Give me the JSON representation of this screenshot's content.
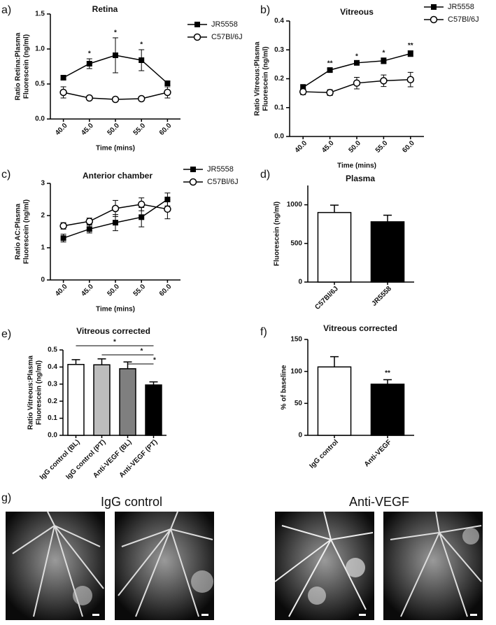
{
  "chart_data": [
    {
      "type": "line",
      "label": "a)",
      "title": "Retina",
      "y_label": [
        "Ratio Retina:Plasma",
        "Fluorescein (ng/ml)"
      ],
      "x_label": "Time (mins)",
      "categories": [
        "40.0",
        "45.0",
        "50.0",
        "55.0",
        "60.0"
      ],
      "ylim": [
        0,
        1.5
      ],
      "yticks": [
        {
          "value": 0,
          "label": "0.0"
        },
        {
          "value": 0.5,
          "label": "0.5"
        },
        {
          "value": 1,
          "label": "1.0"
        },
        {
          "value": 1.5,
          "label": "1.5"
        }
      ],
      "legend": "upper right",
      "series": [
        {
          "name": "JR5558",
          "color": "#000000",
          "marker": "square",
          "values": [
            0.59,
            0.79,
            0.91,
            0.84,
            0.51
          ],
          "errors": [
            0.03,
            0.07,
            0.25,
            0.15,
            0.03
          ]
        },
        {
          "name": "C57Bl/6J",
          "color": "#000000",
          "marker": "circle",
          "values": [
            0.38,
            0.3,
            0.28,
            0.29,
            0.38
          ],
          "errors": [
            0.08,
            0.02,
            0.02,
            0.03,
            0.08
          ]
        }
      ],
      "significance": [
        null,
        "*",
        "*",
        "*",
        null
      ]
    },
    {
      "type": "line",
      "label": "b)",
      "title": "Vitreous",
      "y_label": [
        "Ratio Vitreous:Plasma",
        "Fluorescein (ng/ml)"
      ],
      "x_label": "Time (mins)",
      "categories": [
        "40.0",
        "45.0",
        "50.0",
        "55.0",
        "60.0"
      ],
      "ylim": [
        0,
        0.4
      ],
      "yticks": [
        {
          "value": 0,
          "label": "0.0"
        },
        0.1,
        0.2,
        0.3,
        0.4
      ],
      "legend": "upper right",
      "series": [
        {
          "name": "JR5558",
          "color": "#000000",
          "marker": "square",
          "values": [
            0.17,
            0.23,
            0.255,
            0.262,
            0.287
          ],
          "errors": [
            0.01,
            0.005,
            0.005,
            0.01,
            0.01
          ]
        },
        {
          "name": "C57Bl/6J",
          "color": "#000000",
          "marker": "circle",
          "values": [
            0.155,
            0.152,
            0.185,
            0.193,
            0.197
          ],
          "errors": [
            0.01,
            0.01,
            0.02,
            0.02,
            0.025
          ]
        }
      ],
      "significance": [
        null,
        "**",
        "*",
        "*",
        "**"
      ]
    },
    {
      "type": "line",
      "label": "c)",
      "title": "Anterior chamber",
      "y_label": [
        "Ratio AC:Plasma",
        "Fluorescein (ng/ml)"
      ],
      "x_label": "Time (mins)",
      "categories": [
        "40.0",
        "45.0",
        "50.0",
        "55.0",
        "60.0"
      ],
      "ylim": [
        0,
        3
      ],
      "yticks": [
        0,
        1,
        2,
        3
      ],
      "legend": "upper right",
      "series": [
        {
          "name": "JR5558",
          "color": "#000000",
          "marker": "square",
          "values": [
            1.3,
            1.58,
            1.78,
            1.95,
            2.5
          ],
          "errors": [
            0.12,
            0.12,
            0.25,
            0.3,
            0.2
          ]
        },
        {
          "name": "C57Bl/6J",
          "color": "#000000",
          "marker": "circle",
          "values": [
            1.68,
            1.82,
            2.22,
            2.35,
            2.2
          ],
          "errors": [
            0.1,
            0.1,
            0.25,
            0.2,
            0.3
          ]
        }
      ]
    },
    {
      "type": "bar",
      "label": "d)",
      "title": "Plasma",
      "y_label": [
        "Fluorescein (ng/ml)"
      ],
      "categories": [
        "C57Bl/6J",
        "JR5558"
      ],
      "values": [
        900,
        780
      ],
      "errors": [
        95,
        85
      ],
      "colors": [
        "#ffffff",
        "#000000"
      ],
      "ylim": [
        0,
        1250
      ],
      "yticks": [
        0,
        500,
        1000
      ]
    },
    {
      "type": "bar",
      "label": "e)",
      "title": "Vitreous corrected",
      "y_label": [
        "Ratio Vitreous:Plasma",
        "Fluorescein (ng/ml)"
      ],
      "categories": [
        "IgG control (BL)",
        "IgG control (PT)",
        "Anti-VEGF (BL)",
        "Anti-VEGF (PT)"
      ],
      "values": [
        0.415,
        0.413,
        0.39,
        0.295
      ],
      "errors": [
        0.028,
        0.035,
        0.04,
        0.018
      ],
      "colors": [
        "#ffffff",
        "#bdbdbd",
        "#7f7f7f",
        "#000000"
      ],
      "ylim": [
        0,
        0.5
      ],
      "yticks": [
        {
          "value": 0,
          "label": "0.0"
        },
        0.1,
        0.2,
        0.3,
        0.4,
        0.5
      ],
      "comparisons": [
        {
          "pair": [
            "IgG control (BL)",
            "Anti-VEGF (PT)"
          ],
          "label": "*"
        },
        {
          "pair": [
            "IgG control (PT)",
            "Anti-VEGF (PT)"
          ],
          "label": "*"
        },
        {
          "pair": [
            "Anti-VEGF (BL)",
            "Anti-VEGF (PT)"
          ],
          "label": "*"
        }
      ]
    },
    {
      "type": "bar",
      "label": "f)",
      "title": "Vitreous corrected",
      "y_label": [
        "% of baseline"
      ],
      "categories": [
        "IgG control",
        "Anti-VEGF"
      ],
      "values": [
        107,
        80
      ],
      "errors": [
        16,
        7
      ],
      "colors": [
        "#ffffff",
        "#000000"
      ],
      "ylim": [
        0,
        150
      ],
      "yticks": [
        0,
        50,
        100,
        150
      ],
      "significance": [
        null,
        "**"
      ]
    }
  ],
  "images": {
    "label": "g)",
    "groups": [
      {
        "title": "IgG control"
      },
      {
        "title": "Anti-VEGF"
      }
    ]
  }
}
